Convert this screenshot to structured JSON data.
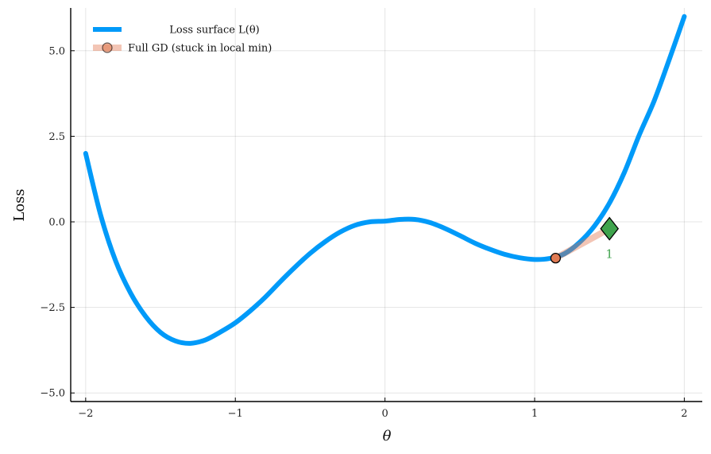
{
  "chart_data": {
    "type": "line",
    "xlabel": "θ",
    "ylabel": "Loss",
    "xlim": [
      -2.1,
      2.12
    ],
    "ylim": [
      -5.25,
      6.25
    ],
    "xticks": [
      -2,
      -1,
      0,
      1,
      2
    ],
    "xtick_labels": [
      "−2",
      "−1",
      "0",
      "1",
      "2"
    ],
    "yticks": [
      -5,
      -2.5,
      0,
      2.5,
      5
    ],
    "ytick_labels": [
      "−5.0",
      "−2.5",
      "0.0",
      "2.5",
      "5.0"
    ],
    "grid": true,
    "legend_position": "top-left",
    "series": [
      {
        "name": "Loss surface L(θ)",
        "color": "#009af9",
        "x": [
          -2.0,
          -1.9,
          -1.8,
          -1.7,
          -1.6,
          -1.5,
          -1.4,
          -1.3,
          -1.2,
          -1.1,
          -1.0,
          -0.9,
          -0.8,
          -0.7,
          -0.6,
          -0.5,
          -0.4,
          -0.3,
          -0.2,
          -0.1,
          0.0,
          0.1,
          0.2,
          0.3,
          0.4,
          0.5,
          0.6,
          0.7,
          0.8,
          0.9,
          1.0,
          1.1,
          1.2,
          1.3,
          1.4,
          1.5,
          1.6,
          1.7,
          1.8,
          1.9,
          2.0
        ],
        "y": [
          2.0,
          0.2,
          -1.14,
          -2.08,
          -2.76,
          -3.23,
          -3.48,
          -3.55,
          -3.45,
          -3.22,
          -2.95,
          -2.6,
          -2.2,
          -1.75,
          -1.32,
          -0.92,
          -0.58,
          -0.3,
          -0.1,
          0.0,
          0.02,
          0.07,
          0.07,
          -0.02,
          -0.19,
          -0.4,
          -0.62,
          -0.8,
          -0.95,
          -1.05,
          -1.1,
          -1.07,
          -0.93,
          -0.6,
          -0.12,
          0.55,
          1.45,
          2.55,
          3.55,
          4.75,
          6.0
        ]
      },
      {
        "name": "Full GD (stuck in local min)",
        "color": "#e26f46",
        "x": [
          1.5,
          1.14
        ],
        "y": [
          -0.2,
          -1.06
        ]
      }
    ],
    "markers": [
      {
        "label": "1",
        "x": 1.5,
        "y": -0.2,
        "shape": "diamond",
        "color": "#3fa34d"
      },
      {
        "x": 1.14,
        "y": -1.06,
        "shape": "circle",
        "color": "#e07b54"
      }
    ]
  }
}
